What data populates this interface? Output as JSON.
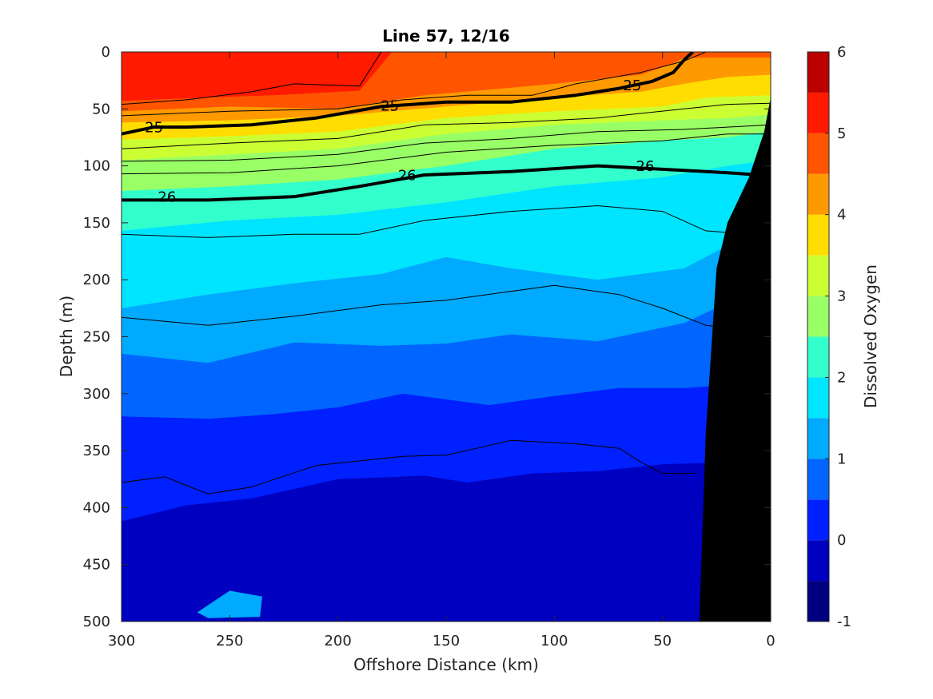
{
  "chart_data": {
    "type": "contour",
    "title": "Line 57, 12/16",
    "xlabel": "Offshore Distance (km)",
    "ylabel": "Depth (m)",
    "xlim": [
      300,
      0
    ],
    "ylim": [
      500,
      0
    ],
    "x_reversed": true,
    "y_reversed": true,
    "x_ticks": [
      "300",
      "250",
      "200",
      "150",
      "100",
      "50",
      "0"
    ],
    "y_ticks": [
      "0",
      "50",
      "100",
      "150",
      "200",
      "250",
      "300",
      "350",
      "400",
      "450",
      "500"
    ],
    "colorbar": {
      "label": "Dissolved Oxygen",
      "range": [
        -1,
        6
      ],
      "tick_labels": [
        "-1",
        "0",
        "1",
        "2",
        "3",
        "4",
        "5",
        "6"
      ],
      "levels": [
        {
          "from": -1.0,
          "to": -0.5,
          "color": "#000080"
        },
        {
          "from": -0.5,
          "to": 0.0,
          "color": "#0000c0"
        },
        {
          "from": 0.0,
          "to": 0.5,
          "color": "#0020ff"
        },
        {
          "from": 0.5,
          "to": 1.0,
          "color": "#0066ff"
        },
        {
          "from": 1.0,
          "to": 1.5,
          "color": "#00aaff"
        },
        {
          "from": 1.5,
          "to": 2.0,
          "color": "#00e5ff"
        },
        {
          "from": 2.0,
          "to": 2.5,
          "color": "#33ffcc"
        },
        {
          "from": 2.5,
          "to": 3.0,
          "color": "#99ff66"
        },
        {
          "from": 3.0,
          "to": 3.5,
          "color": "#ccff33"
        },
        {
          "from": 3.5,
          "to": 4.0,
          "color": "#ffdd00"
        },
        {
          "from": 4.0,
          "to": 4.5,
          "color": "#ff9900"
        },
        {
          "from": 4.5,
          "to": 5.0,
          "color": "#ff5500"
        },
        {
          "from": 5.0,
          "to": 5.5,
          "color": "#ff1a00"
        },
        {
          "from": 5.5,
          "to": 6.0,
          "color": "#bb0000"
        }
      ]
    },
    "filled_boundaries": [
      {
        "upper_value": 5.5,
        "points": [
          [
            300,
            43
          ],
          [
            260,
            40
          ],
          [
            230,
            38
          ],
          [
            190,
            34
          ],
          [
            175,
            0
          ],
          [
            0,
            0
          ]
        ]
      },
      {
        "upper_value": 5.0,
        "points": [
          [
            300,
            52
          ],
          [
            250,
            48
          ],
          [
            200,
            50
          ],
          [
            160,
            38
          ],
          [
            130,
            33
          ],
          [
            100,
            28
          ],
          [
            60,
            20
          ],
          [
            45,
            10
          ],
          [
            40,
            5
          ],
          [
            0,
            5
          ]
        ]
      },
      {
        "upper_value": 4.5,
        "points": [
          [
            300,
            62
          ],
          [
            250,
            60
          ],
          [
            200,
            56
          ],
          [
            150,
            48
          ],
          [
            100,
            40
          ],
          [
            60,
            35
          ],
          [
            40,
            28
          ],
          [
            20,
            22
          ],
          [
            0,
            20
          ]
        ]
      },
      {
        "upper_value": 4.0,
        "points": [
          [
            300,
            77
          ],
          [
            250,
            74
          ],
          [
            200,
            70
          ],
          [
            150,
            58
          ],
          [
            100,
            52
          ],
          [
            50,
            48
          ],
          [
            30,
            40
          ],
          [
            0,
            38
          ]
        ]
      },
      {
        "upper_value": 3.5,
        "points": [
          [
            300,
            95
          ],
          [
            250,
            90
          ],
          [
            200,
            85
          ],
          [
            150,
            72
          ],
          [
            100,
            64
          ],
          [
            50,
            60
          ],
          [
            20,
            58
          ],
          [
            0,
            55
          ]
        ]
      },
      {
        "upper_value": 3.0,
        "points": [
          [
            300,
            122
          ],
          [
            250,
            118
          ],
          [
            200,
            112
          ],
          [
            150,
            100
          ],
          [
            100,
            85
          ],
          [
            50,
            78
          ],
          [
            20,
            75
          ],
          [
            0,
            70
          ]
        ]
      },
      {
        "upper_value": 2.5,
        "points": [
          [
            300,
            157
          ],
          [
            250,
            148
          ],
          [
            200,
            143
          ],
          [
            150,
            132
          ],
          [
            100,
            118
          ],
          [
            50,
            110
          ],
          [
            20,
            100
          ],
          [
            0,
            95
          ]
        ]
      },
      {
        "upper_value": 2.0,
        "points": [
          [
            300,
            225
          ],
          [
            260,
            213
          ],
          [
            220,
            203
          ],
          [
            180,
            195
          ],
          [
            150,
            180
          ],
          [
            120,
            190
          ],
          [
            80,
            200
          ],
          [
            40,
            190
          ],
          [
            20,
            170
          ],
          [
            0,
            160
          ]
        ]
      },
      {
        "upper_value": 1.5,
        "points": [
          [
            300,
            265
          ],
          [
            260,
            273
          ],
          [
            220,
            255
          ],
          [
            180,
            258
          ],
          [
            150,
            256
          ],
          [
            120,
            248
          ],
          [
            80,
            254
          ],
          [
            40,
            238
          ],
          [
            20,
            220
          ],
          [
            0,
            210
          ]
        ]
      },
      {
        "upper_value": 1.0,
        "points": [
          [
            300,
            320
          ],
          [
            260,
            322
          ],
          [
            230,
            318
          ],
          [
            200,
            312
          ],
          [
            170,
            300
          ],
          [
            130,
            310
          ],
          [
            100,
            302
          ],
          [
            70,
            295
          ],
          [
            40,
            295
          ],
          [
            0,
            290
          ]
        ]
      },
      {
        "upper_value": 0.5,
        "points": [
          [
            300,
            412
          ],
          [
            270,
            398
          ],
          [
            240,
            392
          ],
          [
            200,
            375
          ],
          [
            160,
            372
          ],
          [
            140,
            378
          ],
          [
            110,
            370
          ],
          [
            80,
            368
          ],
          [
            50,
            362
          ],
          [
            20,
            360
          ],
          [
            0,
            358
          ]
        ]
      }
    ],
    "low_patch": {
      "upper_value": 1.5,
      "points": [
        [
          265,
          492
        ],
        [
          250,
          473
        ],
        [
          235,
          478
        ],
        [
          236,
          496
        ],
        [
          260,
          497
        ]
      ]
    },
    "isopycnals": [
      {
        "value": 25,
        "labeled": true,
        "bold": true,
        "points": [
          [
            300,
            72
          ],
          [
            285,
            66
          ],
          [
            270,
            66
          ],
          [
            240,
            64
          ],
          [
            210,
            58
          ],
          [
            180,
            48
          ],
          [
            150,
            44
          ],
          [
            120,
            44
          ],
          [
            90,
            38
          ],
          [
            70,
            32
          ],
          [
            55,
            26
          ],
          [
            45,
            18
          ],
          [
            40,
            7
          ],
          [
            36,
            0
          ]
        ],
        "label_positions": [
          [
            285,
            67
          ],
          [
            176,
            48
          ],
          [
            64,
            30
          ]
        ]
      },
      {
        "value": 26,
        "labeled": true,
        "bold": true,
        "points": [
          [
            300,
            130
          ],
          [
            260,
            130
          ],
          [
            220,
            127
          ],
          [
            190,
            118
          ],
          [
            160,
            108
          ],
          [
            120,
            105
          ],
          [
            80,
            100
          ],
          [
            50,
            103
          ],
          [
            20,
            106
          ],
          [
            5,
            108
          ]
        ],
        "label_positions": [
          [
            279,
            128
          ],
          [
            168,
            109
          ],
          [
            58,
            101
          ]
        ]
      },
      {
        "value": null,
        "labeled": false,
        "bold": false,
        "points": [
          [
            300,
            46
          ],
          [
            270,
            42
          ],
          [
            240,
            35
          ],
          [
            220,
            28
          ],
          [
            190,
            30
          ],
          [
            180,
            0
          ]
        ]
      },
      {
        "value": null,
        "labeled": false,
        "bold": false,
        "points": [
          [
            300,
            56
          ],
          [
            250,
            52
          ],
          [
            200,
            50
          ],
          [
            170,
            42
          ],
          [
            140,
            38
          ],
          [
            110,
            38
          ],
          [
            90,
            28
          ],
          [
            60,
            18
          ],
          [
            40,
            8
          ],
          [
            30,
            0
          ]
        ]
      },
      {
        "value": null,
        "labeled": false,
        "bold": false,
        "points": [
          [
            300,
            85
          ],
          [
            250,
            80
          ],
          [
            200,
            76
          ],
          [
            160,
            64
          ],
          [
            120,
            62
          ],
          [
            80,
            58
          ],
          [
            40,
            50
          ],
          [
            20,
            46
          ],
          [
            0,
            45
          ]
        ]
      },
      {
        "value": null,
        "labeled": false,
        "bold": false,
        "points": [
          [
            300,
            96
          ],
          [
            250,
            95
          ],
          [
            200,
            90
          ],
          [
            160,
            80
          ],
          [
            120,
            76
          ],
          [
            80,
            70
          ],
          [
            40,
            68
          ],
          [
            20,
            66
          ],
          [
            0,
            64
          ]
        ]
      },
      {
        "value": null,
        "labeled": false,
        "bold": false,
        "points": [
          [
            300,
            107
          ],
          [
            250,
            106
          ],
          [
            200,
            100
          ],
          [
            150,
            88
          ],
          [
            100,
            82
          ],
          [
            50,
            78
          ],
          [
            20,
            72
          ],
          [
            0,
            72
          ]
        ]
      },
      {
        "value": null,
        "labeled": false,
        "bold": false,
        "points": [
          [
            300,
            160
          ],
          [
            260,
            163
          ],
          [
            220,
            160
          ],
          [
            190,
            160
          ],
          [
            160,
            148
          ],
          [
            120,
            140
          ],
          [
            80,
            135
          ],
          [
            50,
            140
          ],
          [
            30,
            157
          ],
          [
            10,
            160
          ]
        ]
      },
      {
        "value": null,
        "labeled": false,
        "bold": false,
        "points": [
          [
            300,
            233
          ],
          [
            260,
            240
          ],
          [
            220,
            232
          ],
          [
            180,
            222
          ],
          [
            150,
            218
          ],
          [
            100,
            205
          ],
          [
            70,
            213
          ],
          [
            50,
            225
          ],
          [
            30,
            240
          ],
          [
            15,
            243
          ]
        ]
      },
      {
        "value": null,
        "labeled": false,
        "bold": false,
        "points": [
          [
            300,
            378
          ],
          [
            280,
            373
          ],
          [
            260,
            388
          ],
          [
            240,
            382
          ],
          [
            210,
            363
          ],
          [
            170,
            355
          ],
          [
            150,
            354
          ],
          [
            120,
            341
          ],
          [
            90,
            344
          ],
          [
            70,
            348
          ],
          [
            60,
            360
          ],
          [
            50,
            370
          ],
          [
            35,
            370
          ]
        ]
      }
    ],
    "seafloor": {
      "color": "#000000",
      "points": [
        [
          33,
          500
        ],
        [
          30,
          335
        ],
        [
          25,
          190
        ],
        [
          20,
          150
        ],
        [
          10,
          110
        ],
        [
          3,
          70
        ],
        [
          0,
          40
        ],
        [
          0,
          500
        ]
      ]
    }
  }
}
